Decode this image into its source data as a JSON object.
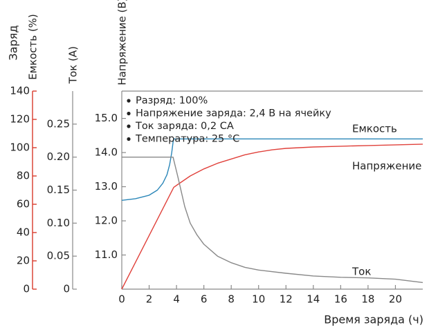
{
  "chart_data": {
    "type": "line",
    "xlabel": "Время заряда (ч)",
    "x_ticks": [
      0,
      2,
      4,
      6,
      8,
      10,
      12,
      14,
      16,
      18,
      20
    ],
    "xlim": [
      0,
      22
    ],
    "axes": {
      "charge": {
        "label": "Заряд",
        "label2": "Емкость (%)",
        "ticks": [
          0,
          20,
          40,
          60,
          80,
          100,
          120,
          140
        ],
        "ylim": [
          0,
          140
        ],
        "color": "#d93a2b"
      },
      "current": {
        "label": "Ток (А)",
        "ticks": [
          0,
          0.05,
          0.1,
          0.15,
          0.2,
          0.25
        ],
        "tick_labels": [
          "0",
          "0.05",
          "0.10",
          "0.15",
          "0.20",
          "0.25"
        ],
        "ylim": [
          0,
          0.3
        ],
        "color": "#888888"
      },
      "voltage": {
        "label": "Напряжение (В)",
        "ticks": [
          11.0,
          12.0,
          13.0,
          14.0,
          15.0
        ],
        "tick_labels": [
          "11.0",
          "12.0",
          "13.0",
          "14.0",
          "15.0"
        ],
        "ylim": [
          10,
          15.8
        ],
        "color": "#888888"
      }
    },
    "legend_text": [
      "Разряд: 100%",
      "Напряжение заряда: 2,4 В на ячейку",
      "Ток заряда: 0,2 СА",
      "Температура: 25 °С"
    ],
    "series": [
      {
        "name": "Емкость",
        "color": "#e0403a",
        "axis": "charge",
        "x": [
          0,
          3.8,
          5,
          6,
          7,
          8,
          9,
          10,
          11,
          12,
          14,
          16,
          18,
          20,
          22
        ],
        "y": [
          0,
          72,
          80,
          85,
          89,
          92,
          95,
          97,
          98.5,
          99.5,
          100.5,
          101,
          101.5,
          102,
          102.5
        ]
      },
      {
        "name": "Напряжение",
        "color": "#2a86b8",
        "axis": "voltage",
        "x": [
          0,
          1,
          2,
          2.6,
          3,
          3.3,
          3.5,
          3.65,
          3.75,
          3.8,
          22
        ],
        "y": [
          12.6,
          12.65,
          12.75,
          12.9,
          13.1,
          13.35,
          13.65,
          14.0,
          14.3,
          14.4,
          14.4
        ]
      },
      {
        "name": "Ток",
        "color": "#888888",
        "axis": "current",
        "x": [
          0,
          3.75,
          4.1,
          4.6,
          5,
          5.5,
          6,
          7,
          8,
          9,
          10,
          12,
          14,
          16,
          18,
          20,
          22
        ],
        "y": [
          0.2,
          0.2,
          0.17,
          0.125,
          0.1,
          0.082,
          0.068,
          0.05,
          0.04,
          0.033,
          0.029,
          0.024,
          0.02,
          0.018,
          0.017,
          0.015,
          0.01
        ]
      }
    ]
  }
}
